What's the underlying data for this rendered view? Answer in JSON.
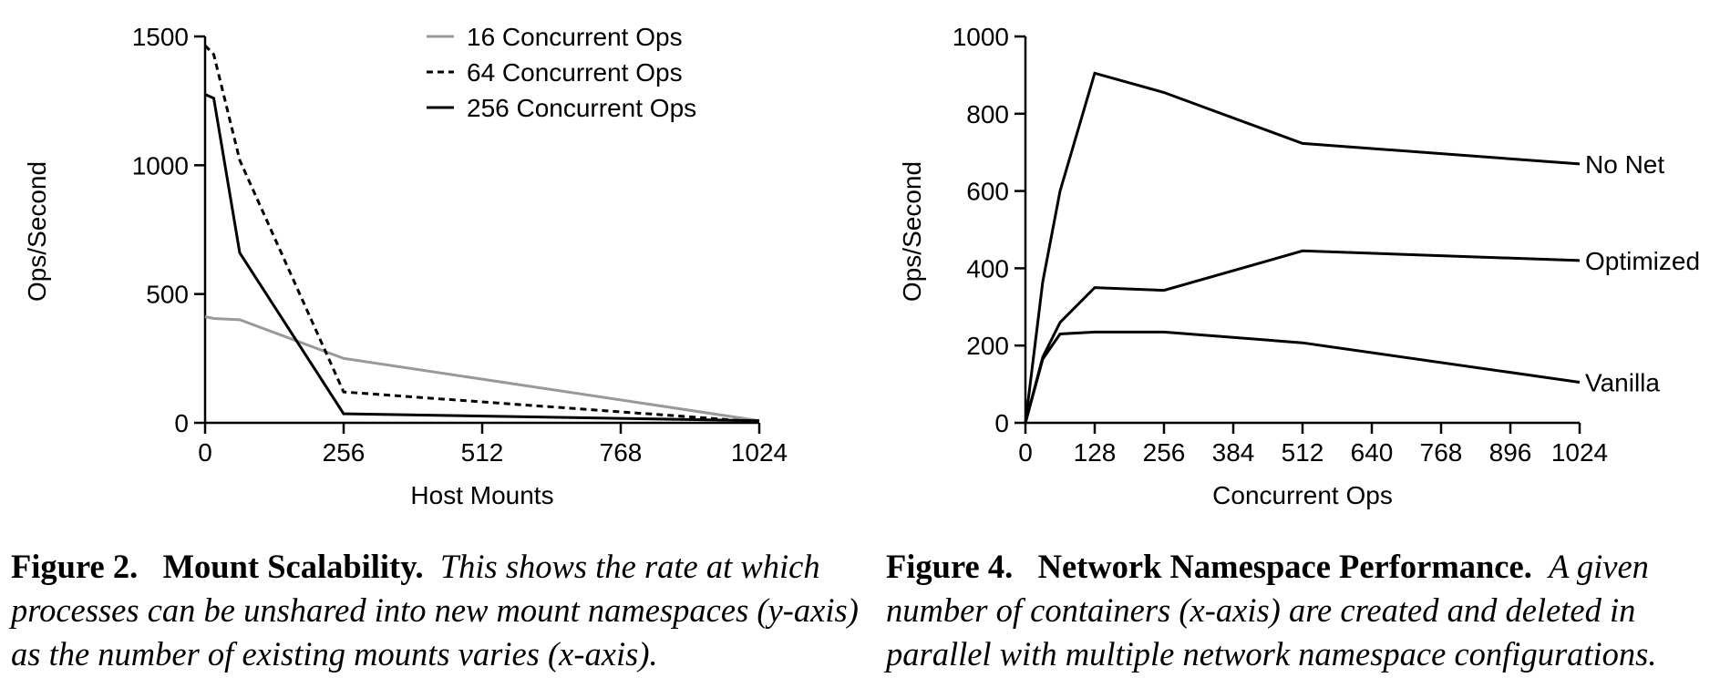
{
  "chart_data": [
    {
      "type": "line",
      "xlabel": "Host Mounts",
      "ylabel": "Ops/Second",
      "xlim": [
        0,
        1024
      ],
      "ylim": [
        0,
        1500
      ],
      "xticks": [
        0,
        256,
        512,
        768,
        1024
      ],
      "yticks": [
        0,
        500,
        1000,
        1500
      ],
      "grid": false,
      "legend": "top-center",
      "series": [
        {
          "name": "16 Concurrent Ops",
          "color": "#999999",
          "dash": "solid",
          "x": [
            0,
            16,
            64,
            256,
            1024
          ],
          "y": [
            412,
            405,
            400,
            250,
            8
          ]
        },
        {
          "name": "64 Concurrent Ops",
          "color": "#000000",
          "dash": "dashed",
          "x": [
            0,
            16,
            64,
            256,
            1024
          ],
          "y": [
            1465,
            1430,
            1020,
            120,
            4
          ]
        },
        {
          "name": "256 Concurrent Ops",
          "color": "#000000",
          "dash": "solid",
          "x": [
            0,
            16,
            64,
            256,
            1024
          ],
          "y": [
            1275,
            1260,
            660,
            35,
            8
          ]
        }
      ]
    },
    {
      "type": "line",
      "xlabel": "Concurrent Ops",
      "ylabel": "Ops/Second",
      "xlim": [
        0,
        1024
      ],
      "ylim": [
        0,
        1000
      ],
      "xticks": [
        0,
        128,
        256,
        384,
        512,
        640,
        768,
        896,
        1024
      ],
      "yticks": [
        0,
        200,
        400,
        600,
        800,
        1000
      ],
      "grid": false,
      "legend": "inline-right",
      "series": [
        {
          "name": "No Net",
          "color": "#000000",
          "dash": "solid",
          "x": [
            0,
            32,
            64,
            128,
            256,
            512,
            1024
          ],
          "y": [
            0,
            365,
            600,
            905,
            855,
            723,
            670
          ]
        },
        {
          "name": "Optimized",
          "color": "#000000",
          "dash": "solid",
          "x": [
            0,
            32,
            64,
            128,
            256,
            512,
            1024
          ],
          "y": [
            0,
            170,
            260,
            350,
            343,
            445,
            420
          ]
        },
        {
          "name": "Vanilla",
          "color": "#000000",
          "dash": "solid",
          "x": [
            0,
            32,
            64,
            128,
            256,
            512,
            1024
          ],
          "y": [
            0,
            165,
            230,
            235,
            235,
            207,
            105
          ]
        }
      ]
    }
  ],
  "captions": [
    {
      "number": "Figure 2.",
      "title": "Mount Scalability.",
      "body": "This shows the rate at which processes can be unshared into new mount namespaces (y-axis) as the number of existing mounts varies (x-axis)."
    },
    {
      "number": "Figure 4.",
      "title": "Network Namespace Performance.",
      "body": "A given number of containers (x-axis) are created and deleted in parallel with multiple network namespace configurations."
    }
  ]
}
